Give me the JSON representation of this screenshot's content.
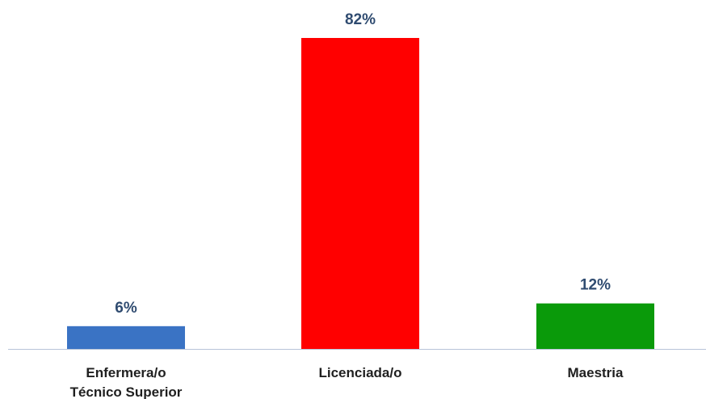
{
  "chart_data": {
    "type": "bar",
    "categories": [
      [
        "Enfermera/o",
        "Técnico Superior"
      ],
      [
        "Licenciada/o"
      ],
      [
        "Maestria"
      ]
    ],
    "values": [
      6,
      82,
      12
    ],
    "value_labels": [
      "6%",
      "82%",
      "12%"
    ],
    "bar_colors": [
      "#3a73c4",
      "#ff0000",
      "#0a9a0a"
    ],
    "axis_color": "#b8c4d8",
    "ylim": [
      0,
      82
    ],
    "grid": false,
    "legend": "none"
  }
}
